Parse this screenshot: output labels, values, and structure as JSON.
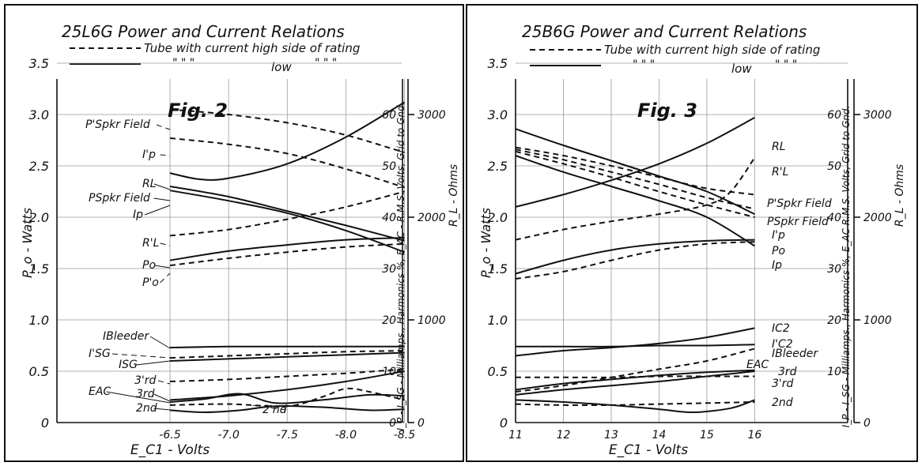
{
  "chart_data": [
    {
      "type": "line",
      "title": "25L6G  Power and Current Relations",
      "legend": [
        {
          "style": "dashed",
          "text": "Tube with current high side of rating"
        },
        {
          "style": "solid",
          "marks": "\"      \"      \"",
          "word": "low",
          "marks2": "\"     \"     \""
        }
      ],
      "figure_label": "Fig. 2",
      "xlabel": "E_C1 - Volts",
      "x_ticks": [
        "-6.5",
        "-7.0",
        "-7.5",
        "-8.0",
        "-8.5"
      ],
      "xlim": [
        -6.5,
        -8.5
      ],
      "ylabel": "P_o - Watts",
      "y_ticks": [
        "0",
        "0.5",
        "1.0",
        "1.5",
        "2.0",
        "2.5",
        "3.0",
        "3.5"
      ],
      "ylim": [
        0,
        3.5
      ],
      "right_axis1_label": "I_P - I_SG - Milliamps., Harmonics %, E_AC - R.M.S. Volts, Grid to Gnd.",
      "right_axis1_ticks": [
        "0",
        "10",
        "20",
        "30",
        "40",
        "50",
        "60"
      ],
      "right_axis2_label": "R_L - Ohms",
      "right_axis2_ticks": [
        "0",
        "1000",
        "2000",
        "3000"
      ],
      "series": [
        {
          "label": "P'Spkr Field",
          "dashed": true,
          "x": [
            -6.5,
            -7.0,
            -7.5,
            -8.0,
            -8.5
          ],
          "y": [
            3.05,
            3.0,
            2.92,
            2.8,
            2.63
          ]
        },
        {
          "label": "I'p",
          "dashed": true,
          "x": [
            -6.5,
            -7.0,
            -7.5,
            -8.0,
            -8.5
          ],
          "y": [
            2.77,
            2.71,
            2.62,
            2.47,
            2.29
          ]
        },
        {
          "label": "RL",
          "dashed": false,
          "x": [
            -6.5,
            -6.75,
            -7.0,
            -7.5,
            -8.0,
            -8.5
          ],
          "y": [
            2.43,
            2.37,
            2.38,
            2.52,
            2.78,
            3.12
          ]
        },
        {
          "label": "PSpkr Field",
          "dashed": false,
          "x": [
            -6.5,
            -7.0,
            -7.5,
            -8.0,
            -8.5
          ],
          "y": [
            2.3,
            2.2,
            2.06,
            1.92,
            1.77
          ]
        },
        {
          "label": "Ip",
          "dashed": false,
          "x": [
            -6.5,
            -7.0,
            -7.5,
            -8.0,
            -8.5
          ],
          "y": [
            2.26,
            2.16,
            2.04,
            1.87,
            1.66
          ]
        },
        {
          "label": "R'L",
          "dashed": true,
          "x": [
            -6.5,
            -7.0,
            -7.5,
            -8.0,
            -8.5
          ],
          "y": [
            1.82,
            1.88,
            1.98,
            2.1,
            2.25
          ]
        },
        {
          "label": "Po",
          "dashed": false,
          "x": [
            -6.5,
            -7.0,
            -7.5,
            -8.0,
            -8.5
          ],
          "y": [
            1.58,
            1.67,
            1.73,
            1.78,
            1.8
          ]
        },
        {
          "label": "P'o",
          "dashed": true,
          "x": [
            -6.5,
            -7.0,
            -7.5,
            -8.0,
            -8.5
          ],
          "y": [
            1.53,
            1.6,
            1.66,
            1.71,
            1.74
          ]
        },
        {
          "label": "IBleeder",
          "dashed": false,
          "x": [
            -6.5,
            -7.0,
            -7.5,
            -8.0,
            -8.5
          ],
          "y": [
            0.73,
            0.74,
            0.74,
            0.74,
            0.74
          ]
        },
        {
          "label": "I'SG",
          "dashed": true,
          "x": [
            -6.5,
            -7.0,
            -7.5,
            -8.0,
            -8.5
          ],
          "y": [
            0.63,
            0.65,
            0.67,
            0.69,
            0.7
          ]
        },
        {
          "label": "ISG",
          "dashed": false,
          "x": [
            -6.5,
            -7.0,
            -7.5,
            -8.0,
            -8.5
          ],
          "y": [
            0.6,
            0.62,
            0.64,
            0.66,
            0.68
          ]
        },
        {
          "label": "3'rd",
          "dashed": true,
          "x": [
            -6.5,
            -7.0,
            -7.5,
            -8.0,
            -8.5
          ],
          "y": [
            0.4,
            0.42,
            0.45,
            0.48,
            0.52
          ]
        },
        {
          "label": "EAC",
          "dashed": false,
          "x": [
            -6.5,
            -7.0,
            -7.5,
            -8.0,
            -8.5
          ],
          "y": [
            0.22,
            0.26,
            0.32,
            0.4,
            0.5
          ]
        },
        {
          "label": "3rd",
          "dashed": false,
          "x": [
            -6.5,
            -6.8,
            -7.1,
            -7.4,
            -7.8,
            -8.2,
            -8.5
          ],
          "y": [
            0.2,
            0.23,
            0.28,
            0.19,
            0.22,
            0.27,
            0.26
          ]
        },
        {
          "label": "2nd",
          "dashed": false,
          "x": [
            -6.5,
            -6.8,
            -7.1,
            -7.4,
            -7.8,
            -8.2,
            -8.5
          ],
          "y": [
            0.12,
            0.1,
            0.12,
            0.16,
            0.15,
            0.12,
            0.13
          ]
        },
        {
          "label": "2'nd",
          "dashed": true,
          "x": [
            -6.5,
            -7.0,
            -7.5,
            -7.8,
            -8.0,
            -8.2,
            -8.5
          ],
          "y": [
            0.17,
            0.18,
            0.16,
            0.25,
            0.33,
            0.3,
            0.22
          ]
        }
      ]
    },
    {
      "type": "line",
      "title": "25B6G  Power and Current Relations",
      "legend": [
        {
          "style": "dashed",
          "text": "Tube with current high side of rating"
        },
        {
          "style": "solid",
          "marks": "\"      \"      \"",
          "word": "low",
          "marks2": "\"     \"     \""
        }
      ],
      "figure_label": "Fig. 3",
      "xlabel": "E_C1 - Volts",
      "x_ticks": [
        "11",
        "12",
        "13",
        "14",
        "15",
        "16"
      ],
      "xlim": [
        11,
        16
      ],
      "ylabel": "P_o - Watts",
      "y_ticks": [
        "0",
        "0.5",
        "1.0",
        "1.5",
        "2.0",
        "2.5",
        "3.0",
        "3.5"
      ],
      "ylim": [
        0,
        3.5
      ],
      "right_axis1_label": "I_P - I_SG - Milliamps., Harmonics %, E_AC R.M.S. Volts, Grid to Gnd.",
      "right_axis1_ticks": [
        "10",
        "20",
        "30",
        "40",
        "50",
        "60"
      ],
      "right_axis2_label": "R_L - Ohms",
      "right_axis2_ticks": [
        "0",
        "1000",
        "2000",
        "3000"
      ],
      "series": [
        {
          "label": "RL",
          "dashed": false,
          "x": [
            11,
            12,
            13,
            14,
            15,
            16
          ],
          "y": [
            2.1,
            2.22,
            2.36,
            2.52,
            2.72,
            2.97
          ]
        },
        {
          "label": "R'L",
          "dashed": true,
          "x": [
            11,
            12,
            13,
            14,
            15,
            15.5,
            16
          ],
          "y": [
            1.78,
            1.88,
            1.96,
            2.03,
            2.12,
            2.25,
            2.58
          ]
        },
        {
          "label": "P'Spkr Field",
          "dashed": true,
          "x": [
            11,
            12,
            13,
            14,
            15,
            16
          ],
          "y": [
            2.68,
            2.6,
            2.5,
            2.39,
            2.28,
            2.22
          ]
        },
        {
          "label": "PSpkr Field",
          "dashed": true,
          "x": [
            11,
            12,
            13,
            14,
            15,
            16
          ],
          "y": [
            2.66,
            2.56,
            2.44,
            2.32,
            2.19,
            2.08
          ]
        },
        {
          "label": "I'p",
          "dashed": true,
          "x": [
            11,
            12,
            13,
            14,
            15,
            16
          ],
          "y": [
            2.64,
            2.52,
            2.39,
            2.25,
            2.12,
            2.0
          ]
        },
        {
          "label": "Ip (upper)",
          "dashed": false,
          "x": [
            11,
            12,
            13,
            14,
            15,
            16
          ],
          "y": [
            2.86,
            2.7,
            2.55,
            2.4,
            2.25,
            2.03
          ]
        },
        {
          "label": "Ip",
          "dashed": false,
          "x": [
            11,
            12,
            13,
            14,
            15,
            16
          ],
          "y": [
            2.6,
            2.44,
            2.3,
            2.16,
            2.0,
            1.72
          ]
        },
        {
          "label": "Po",
          "dashed": false,
          "x": [
            11,
            12,
            13,
            14,
            15,
            16
          ],
          "y": [
            1.45,
            1.58,
            1.68,
            1.74,
            1.77,
            1.78
          ]
        },
        {
          "label": "P'o",
          "dashed": true,
          "x": [
            11,
            12,
            13,
            14,
            15,
            16
          ],
          "y": [
            1.4,
            1.47,
            1.58,
            1.68,
            1.74,
            1.76
          ]
        },
        {
          "label": "IC2",
          "dashed": false,
          "x": [
            11,
            12,
            13,
            14,
            15,
            16
          ],
          "y": [
            0.65,
            0.7,
            0.73,
            0.77,
            0.83,
            0.92
          ]
        },
        {
          "label": "IBleeder",
          "dashed": false,
          "x": [
            11,
            12,
            13,
            14,
            15,
            16
          ],
          "y": [
            0.74,
            0.74,
            0.74,
            0.75,
            0.75,
            0.76
          ]
        },
        {
          "label": "I'C2",
          "dashed": true,
          "x": [
            11,
            12,
            13,
            14,
            15,
            16
          ],
          "y": [
            0.3,
            0.36,
            0.44,
            0.52,
            0.6,
            0.72
          ]
        },
        {
          "label": "3rd",
          "dashed": false,
          "x": [
            11,
            12,
            13,
            14,
            15,
            16
          ],
          "y": [
            0.32,
            0.38,
            0.42,
            0.46,
            0.49,
            0.51
          ]
        },
        {
          "label": "EAC",
          "dashed": false,
          "x": [
            11,
            12,
            13,
            14,
            15,
            16
          ],
          "y": [
            0.27,
            0.32,
            0.36,
            0.4,
            0.45,
            0.5
          ]
        },
        {
          "label": "3'rd",
          "dashed": true,
          "x": [
            11,
            12,
            13,
            14,
            15,
            16
          ],
          "y": [
            0.44,
            0.44,
            0.44,
            0.45,
            0.45,
            0.45
          ]
        },
        {
          "label": "2nd",
          "dashed": false,
          "x": [
            11,
            12,
            13,
            14,
            14.7,
            15.5,
            16
          ],
          "y": [
            0.22,
            0.2,
            0.17,
            0.13,
            0.1,
            0.14,
            0.22
          ]
        },
        {
          "label": "2'nd",
          "dashed": true,
          "x": [
            11,
            12,
            13,
            14,
            15,
            16
          ],
          "y": [
            0.18,
            0.17,
            0.17,
            0.18,
            0.19,
            0.2
          ]
        }
      ]
    }
  ]
}
